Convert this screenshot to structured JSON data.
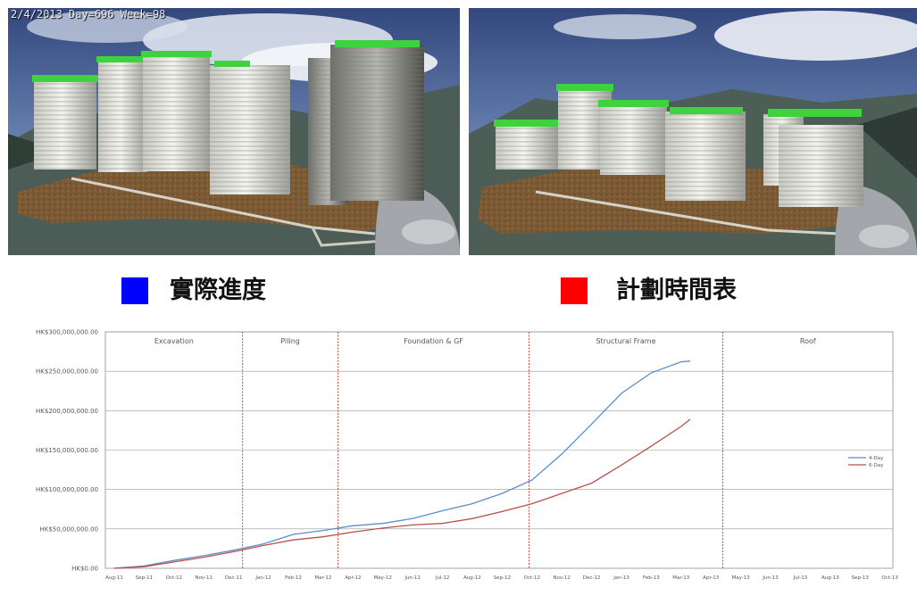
{
  "overlay_text": "2/4/2013 Day=696 Week=98",
  "legend_top": {
    "actual": {
      "label": "實際進度",
      "color": "#0000ff"
    },
    "planned": {
      "label": "計劃時間表",
      "color": "#ff0000"
    }
  },
  "chart_data": {
    "type": "line",
    "x": [
      "Aug-11",
      "Sep-11",
      "Oct-11",
      "Nov-11",
      "Dec-11",
      "Jan-12",
      "Feb-12",
      "Mar-12",
      "Apr-12",
      "May-12",
      "Jun-12",
      "Jul-12",
      "Aug-12",
      "Sep-12",
      "Oct-12",
      "Nov-12",
      "Dec-12",
      "Jan-13",
      "Feb-13",
      "Mar-13",
      "Apr-13",
      "May-13",
      "Jun-13",
      "Jul-13",
      "Aug-13",
      "Sep-13",
      "Oct-13"
    ],
    "y_ticks": [
      "HK$0.00",
      "HK$50,000,000.00",
      "HK$100,000,000.00",
      "HK$150,000,000.00",
      "HK$200,000,000.00",
      "HK$250,000,000.00",
      "HK$300,000,000.00"
    ],
    "ylim": [
      0,
      300000000
    ],
    "grid": true,
    "legend_position": "right",
    "phases": [
      {
        "label": "Excavation",
        "start": 0,
        "end": 4.3
      },
      {
        "label": "Piling",
        "start": 4.3,
        "end": 7.5
      },
      {
        "label": "Foundation & GF",
        "start": 7.5,
        "end": 13.9
      },
      {
        "label": "Structural Frame",
        "start": 13.9,
        "end": 20.4
      },
      {
        "label": "Roof",
        "start": 20.4,
        "end": 26.6
      }
    ],
    "series": [
      {
        "name": "4-Day",
        "color": "#5b8fc7",
        "points": [
          [
            0,
            0
          ],
          [
            1,
            3000000
          ],
          [
            2,
            10000000
          ],
          [
            3,
            16000000
          ],
          [
            4,
            23000000
          ],
          [
            5,
            31000000
          ],
          [
            6,
            43000000
          ],
          [
            7,
            48000000
          ],
          [
            8,
            54000000
          ],
          [
            9,
            57000000
          ],
          [
            10,
            63000000
          ],
          [
            11,
            73000000
          ],
          [
            12,
            82000000
          ],
          [
            13,
            95000000
          ],
          [
            14,
            112000000
          ],
          [
            15,
            145000000
          ],
          [
            16,
            183000000
          ],
          [
            17,
            222000000
          ],
          [
            18,
            248000000
          ],
          [
            19,
            262000000
          ],
          [
            19.3,
            263000000
          ]
        ]
      },
      {
        "name": "6-Day",
        "color": "#b9504b",
        "points": [
          [
            0,
            0
          ],
          [
            1,
            2000000
          ],
          [
            2,
            8000000
          ],
          [
            3,
            14000000
          ],
          [
            4,
            21000000
          ],
          [
            5,
            29000000
          ],
          [
            6,
            36000000
          ],
          [
            7,
            40000000
          ],
          [
            8,
            46000000
          ],
          [
            9,
            51000000
          ],
          [
            10,
            55000000
          ],
          [
            11,
            57000000
          ],
          [
            12,
            63000000
          ],
          [
            13,
            72000000
          ],
          [
            14,
            82000000
          ],
          [
            15,
            95000000
          ],
          [
            16,
            108000000
          ],
          [
            17,
            131000000
          ],
          [
            18,
            155000000
          ],
          [
            19,
            180000000
          ],
          [
            19.3,
            189000000
          ]
        ]
      }
    ]
  }
}
